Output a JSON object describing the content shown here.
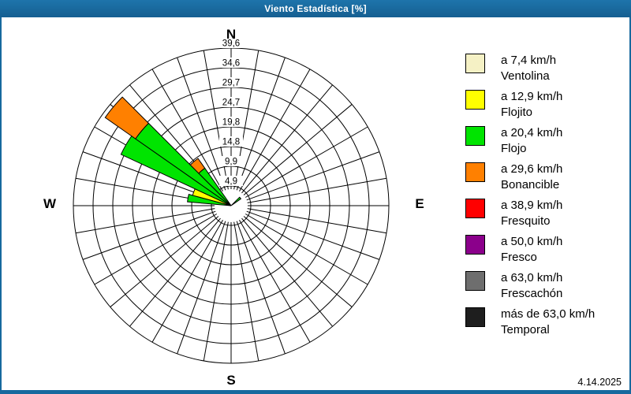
{
  "window": {
    "title": "Viento Estadística [%]",
    "titlebar_color": "#17699E"
  },
  "footer": {
    "date": "4.14.2025"
  },
  "chart_data": {
    "type": "windrose",
    "title": "Viento Estadística [%]",
    "units": "%",
    "max_value": 39.6,
    "ring_step": 4.95,
    "ring_labels": [
      "4,9",
      "9,9",
      "14,8",
      "19,8",
      "24,7",
      "29,7",
      "34,6",
      "39,6"
    ],
    "sectors_count": 36,
    "sector_width_deg": 10,
    "grid_color": "#000000",
    "compass_labels": {
      "n": "N",
      "e": "E",
      "s": "S",
      "w": "W"
    },
    "series": [
      {
        "direction_deg": 280,
        "segments": [
          {
            "class": "Flojo",
            "color": "#00E400",
            "from": 0,
            "to": 11.0
          }
        ]
      },
      {
        "direction_deg": 290,
        "segments": [
          {
            "class": "Flojito",
            "color": "#FFFF00",
            "from": 0,
            "to": 10.0
          }
        ]
      },
      {
        "direction_deg": 300,
        "segments": [
          {
            "class": "Flojo",
            "color": "#00E400",
            "from": 0,
            "to": 30.5
          }
        ]
      },
      {
        "direction_deg": 310,
        "segments": [
          {
            "class": "Flojo",
            "color": "#00E400",
            "from": 0,
            "to": 29.3
          },
          {
            "class": "Bonancible",
            "color": "#FF8000",
            "from": 29.3,
            "to": 38.6
          }
        ]
      },
      {
        "direction_deg": 320,
        "segments": [
          {
            "class": "Flojo",
            "color": "#00E400",
            "from": 0,
            "to": 11.5
          },
          {
            "class": "Bonancible",
            "color": "#FF8000",
            "from": 11.5,
            "to": 14.5
          }
        ]
      },
      {
        "direction_deg": 50,
        "segments": [
          {
            "class": "Flojo",
            "color": "#00E400",
            "from": 0,
            "to": 3.0
          }
        ]
      }
    ]
  },
  "legend": {
    "items": [
      {
        "color": "#F5F1C5",
        "speed": "a 7,4 km/h",
        "name": "Ventolina"
      },
      {
        "color": "#FFFF00",
        "speed": "a 12,9 km/h",
        "name": "Flojito"
      },
      {
        "color": "#00E400",
        "speed": "a 20,4 km/h",
        "name": "Flojo"
      },
      {
        "color": "#FF8000",
        "speed": "a 29,6 km/h",
        "name": "Bonancible"
      },
      {
        "color": "#FF0000",
        "speed": "a 38,9 km/h",
        "name": "Fresquito"
      },
      {
        "color": "#8B008B",
        "speed": "a 50,0 km/h",
        "name": "Fresco"
      },
      {
        "color": "#6E6E6E",
        "speed": "a 63,0 km/h",
        "name": "Frescachón"
      },
      {
        "color": "#1E1E1E",
        "speed": "más de 63,0 km/h",
        "name": "Temporal"
      }
    ]
  }
}
